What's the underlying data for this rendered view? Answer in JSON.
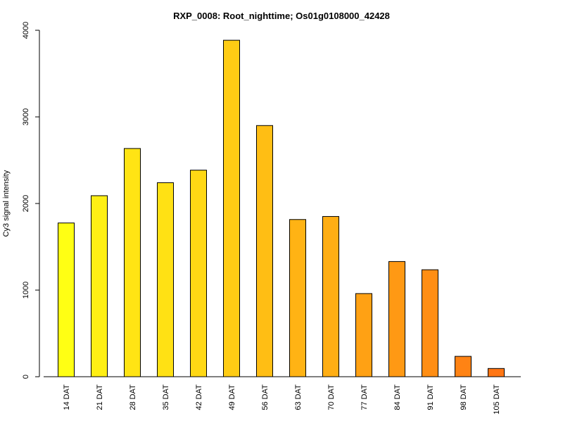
{
  "chart_data": {
    "type": "bar",
    "title": "RXP_0008: Root_nighttime; Os01g0108000_42428",
    "xlabel": "",
    "ylabel": "Cy3 signal intensity",
    "ylim": [
      0,
      4000
    ],
    "yticks": [
      0,
      1000,
      2000,
      3000,
      4000
    ],
    "categories": [
      "14 DAT",
      "21 DAT",
      "28 DAT",
      "35 DAT",
      "42 DAT",
      "49 DAT",
      "56 DAT",
      "63 DAT",
      "70 DAT",
      "77 DAT",
      "84 DAT",
      "91 DAT",
      "98 DAT",
      "105 DAT"
    ],
    "values": [
      1775,
      2090,
      2635,
      2240,
      2385,
      3885,
      2900,
      1815,
      1850,
      960,
      1330,
      1235,
      235,
      95
    ],
    "colors": [
      "#FFFF14",
      "#FFEF14",
      "#FFE414",
      "#FFE114",
      "#FFD814",
      "#FFCC14",
      "#FFBE14",
      "#FFB314",
      "#FFAE14",
      "#FFA114",
      "#FF9914",
      "#FF8E14",
      "#FF8314",
      "#FF7614"
    ],
    "grid": false,
    "legend": "none"
  }
}
